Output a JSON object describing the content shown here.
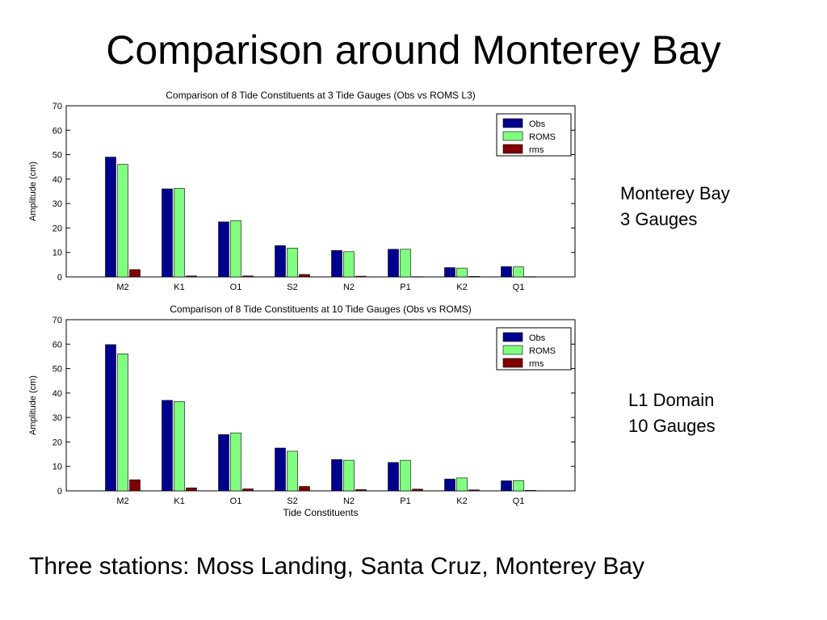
{
  "slide": {
    "title": "Comparison around Monterey Bay",
    "note1": [
      "Monterey Bay",
      "3 Gauges"
    ],
    "note2": [
      "L1  Domain",
      "10  Gauges"
    ],
    "footer": "Three stations: Moss Landing,  Santa Cruz, Monterey Bay"
  },
  "chart_data": [
    {
      "type": "bar",
      "title": "Comparison of 8 Tide Constituents at 3 Tide Gauges (Obs vs ROMS L3)",
      "xlabel": "",
      "ylabel": "Amplitude (cm)",
      "categories": [
        "M2",
        "K1",
        "O1",
        "S2",
        "N2",
        "P1",
        "K2",
        "Q1"
      ],
      "ylim": [
        0,
        70
      ],
      "yticks": [
        0,
        10,
        20,
        30,
        40,
        50,
        60,
        70
      ],
      "legend_position": "top-right",
      "series": [
        {
          "name": "Obs",
          "color": "#00008f",
          "values": [
            49,
            36,
            22.5,
            12.8,
            10.8,
            11.3,
            3.8,
            4.2
          ]
        },
        {
          "name": "ROMS",
          "color": "#80ff80",
          "values": [
            46,
            36.2,
            23,
            11.8,
            10.3,
            11.3,
            3.6,
            4.1
          ]
        },
        {
          "name": "rms",
          "color": "#800000",
          "values": [
            3,
            0.4,
            0.4,
            1,
            0.3,
            0.1,
            0.2,
            0.1
          ]
        }
      ]
    },
    {
      "type": "bar",
      "title": "Comparison of 8 Tide Constituents at 10 Tide Gauges (Obs vs ROMS)",
      "xlabel": "Tide Constituents",
      "ylabel": "Amplitude (cm)",
      "categories": [
        "M2",
        "K1",
        "O1",
        "S2",
        "N2",
        "P1",
        "K2",
        "Q1"
      ],
      "ylim": [
        0,
        70
      ],
      "yticks": [
        0,
        10,
        20,
        30,
        40,
        50,
        60,
        70
      ],
      "legend_position": "top-right",
      "series": [
        {
          "name": "Obs",
          "color": "#00008f",
          "values": [
            59.8,
            37,
            23,
            17.5,
            12.8,
            11.6,
            4.8,
            4.1
          ]
        },
        {
          "name": "ROMS",
          "color": "#80ff80",
          "values": [
            56,
            36.5,
            23.7,
            16.2,
            12.5,
            12.5,
            5.3,
            4.2
          ]
        },
        {
          "name": "rms",
          "color": "#800000",
          "values": [
            4.5,
            1.2,
            0.8,
            1.8,
            0.5,
            0.7,
            0.4,
            0.2
          ]
        }
      ]
    }
  ]
}
